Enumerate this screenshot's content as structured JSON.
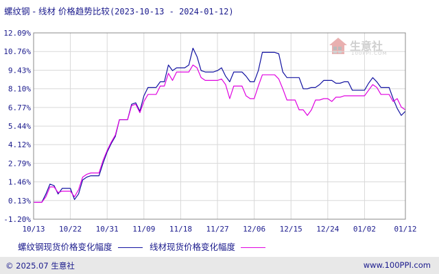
{
  "header": {
    "title_main": "螺纹钢 - 线材 价格趋势比较",
    "title_range": "(2023-10-13 - 2024-01-12)"
  },
  "watermark": {
    "brand": "生意社",
    "url": "100PPI.COM",
    "icon": "house-logo-icon"
  },
  "footer": {
    "left": "© 2025.07 生意社",
    "right": "www.100PPI.com"
  },
  "colors": {
    "series1": "#1010a0",
    "series2": "#e000e0",
    "grid": "#d8d8d8",
    "axis": "#666666",
    "text": "#1a1a8c"
  },
  "chart_data": {
    "type": "line",
    "title": "螺纹钢 - 线材 价格趋势比较",
    "xlabel": "",
    "ylabel": "",
    "ylim": [
      -1.2,
      12.09
    ],
    "y_ticks": [
      "12.09%",
      "10.76%",
      "9.43%",
      "8.10%",
      "6.77%",
      "5.44%",
      "4.12%",
      "2.79%",
      "1.46%",
      "0.13%",
      "-1.20%"
    ],
    "y_tick_values": [
      12.09,
      10.76,
      9.43,
      8.1,
      6.77,
      5.44,
      4.12,
      2.79,
      1.46,
      0.13,
      -1.2
    ],
    "x_ticks": [
      "10/13",
      "10/22",
      "10/31",
      "11/09",
      "11/18",
      "11/27",
      "12/06",
      "12/15",
      "12/24",
      "01/02",
      "01/12"
    ],
    "x_tick_days": [
      0,
      9,
      18,
      27,
      36,
      45,
      54,
      63,
      72,
      81,
      91
    ],
    "x_range_days": [
      0,
      91
    ],
    "grid": true,
    "legend": "bottom",
    "series": [
      {
        "name": "螺纹钢现货价格变化幅度",
        "points": [
          [
            0,
            0
          ],
          [
            2,
            0
          ],
          [
            3,
            0.6
          ],
          [
            4,
            1.3
          ],
          [
            5,
            1.2
          ],
          [
            6,
            0.6
          ],
          [
            7,
            1.0
          ],
          [
            8,
            1.0
          ],
          [
            9,
            1.0
          ],
          [
            10,
            0.2
          ],
          [
            11,
            0.6
          ],
          [
            12,
            1.6
          ],
          [
            13,
            1.8
          ],
          [
            14,
            1.9
          ],
          [
            15,
            1.9
          ],
          [
            16,
            1.9
          ],
          [
            17,
            2.8
          ],
          [
            18,
            3.6
          ],
          [
            19,
            4.2
          ],
          [
            20,
            4.7
          ],
          [
            21,
            5.9
          ],
          [
            22,
            5.9
          ],
          [
            23,
            5.9
          ],
          [
            24,
            7.0
          ],
          [
            25,
            7.1
          ],
          [
            26,
            6.5
          ],
          [
            27,
            7.6
          ],
          [
            28,
            8.2
          ],
          [
            29,
            8.2
          ],
          [
            30,
            8.2
          ],
          [
            31,
            8.6
          ],
          [
            32,
            8.6
          ],
          [
            33,
            9.8
          ],
          [
            34,
            9.4
          ],
          [
            35,
            9.6
          ],
          [
            36,
            9.6
          ],
          [
            37,
            9.6
          ],
          [
            38,
            9.8
          ],
          [
            39,
            11.0
          ],
          [
            40,
            10.4
          ],
          [
            41,
            9.4
          ],
          [
            42,
            9.3
          ],
          [
            43,
            9.3
          ],
          [
            44,
            9.3
          ],
          [
            45,
            9.4
          ],
          [
            46,
            9.6
          ],
          [
            47,
            9.0
          ],
          [
            48,
            8.6
          ],
          [
            49,
            9.3
          ],
          [
            50,
            9.3
          ],
          [
            51,
            9.3
          ],
          [
            52,
            9.0
          ],
          [
            53,
            8.6
          ],
          [
            54,
            8.6
          ],
          [
            55,
            9.4
          ],
          [
            56,
            10.7
          ],
          [
            57,
            10.7
          ],
          [
            58,
            10.7
          ],
          [
            59,
            10.7
          ],
          [
            60,
            10.6
          ],
          [
            61,
            9.3
          ],
          [
            62,
            8.9
          ],
          [
            63,
            8.9
          ],
          [
            64,
            8.9
          ],
          [
            65,
            8.9
          ],
          [
            66,
            8.1
          ],
          [
            67,
            8.1
          ],
          [
            68,
            8.2
          ],
          [
            69,
            8.2
          ],
          [
            70,
            8.4
          ],
          [
            71,
            8.7
          ],
          [
            72,
            8.7
          ],
          [
            73,
            8.7
          ],
          [
            74,
            8.5
          ],
          [
            75,
            8.5
          ],
          [
            76,
            8.6
          ],
          [
            77,
            8.6
          ],
          [
            78,
            8.0
          ],
          [
            79,
            8.0
          ],
          [
            80,
            8.0
          ],
          [
            81,
            8.0
          ],
          [
            82,
            8.5
          ],
          [
            83,
            8.9
          ],
          [
            84,
            8.6
          ],
          [
            85,
            8.2
          ],
          [
            86,
            8.2
          ],
          [
            87,
            8.2
          ],
          [
            88,
            7.4
          ],
          [
            89,
            6.7
          ],
          [
            90,
            6.2
          ],
          [
            91,
            6.5
          ]
        ]
      },
      {
        "name": "线材现货价格变化幅度",
        "points": [
          [
            0,
            0
          ],
          [
            2,
            0
          ],
          [
            3,
            0.4
          ],
          [
            4,
            1.1
          ],
          [
            5,
            1.1
          ],
          [
            6,
            0.7
          ],
          [
            7,
            0.8
          ],
          [
            8,
            0.8
          ],
          [
            9,
            0.8
          ],
          [
            10,
            0.4
          ],
          [
            11,
            0.9
          ],
          [
            12,
            1.8
          ],
          [
            13,
            2.0
          ],
          [
            14,
            2.1
          ],
          [
            15,
            2.1
          ],
          [
            16,
            2.1
          ],
          [
            17,
            3.0
          ],
          [
            18,
            3.7
          ],
          [
            19,
            4.3
          ],
          [
            20,
            4.8
          ],
          [
            21,
            5.9
          ],
          [
            22,
            5.9
          ],
          [
            23,
            5.9
          ],
          [
            24,
            6.9
          ],
          [
            25,
            7.0
          ],
          [
            26,
            6.4
          ],
          [
            27,
            7.2
          ],
          [
            28,
            7.7
          ],
          [
            29,
            7.7
          ],
          [
            30,
            7.7
          ],
          [
            31,
            8.3
          ],
          [
            32,
            8.3
          ],
          [
            33,
            9.2
          ],
          [
            34,
            8.7
          ],
          [
            35,
            9.3
          ],
          [
            36,
            9.3
          ],
          [
            37,
            9.3
          ],
          [
            38,
            9.3
          ],
          [
            39,
            9.8
          ],
          [
            40,
            9.6
          ],
          [
            41,
            8.9
          ],
          [
            42,
            8.7
          ],
          [
            43,
            8.7
          ],
          [
            44,
            8.7
          ],
          [
            45,
            8.7
          ],
          [
            46,
            8.8
          ],
          [
            47,
            8.4
          ],
          [
            48,
            7.4
          ],
          [
            49,
            8.3
          ],
          [
            50,
            8.3
          ],
          [
            51,
            8.3
          ],
          [
            52,
            7.6
          ],
          [
            53,
            7.4
          ],
          [
            54,
            7.4
          ],
          [
            55,
            8.3
          ],
          [
            56,
            9.1
          ],
          [
            57,
            9.1
          ],
          [
            58,
            9.1
          ],
          [
            59,
            9.1
          ],
          [
            60,
            8.8
          ],
          [
            61,
            8.1
          ],
          [
            62,
            7.3
          ],
          [
            63,
            7.3
          ],
          [
            64,
            7.3
          ],
          [
            65,
            6.6
          ],
          [
            66,
            6.6
          ],
          [
            67,
            6.2
          ],
          [
            68,
            6.6
          ],
          [
            69,
            7.3
          ],
          [
            70,
            7.3
          ],
          [
            71,
            7.4
          ],
          [
            72,
            7.4
          ],
          [
            73,
            7.2
          ],
          [
            74,
            7.5
          ],
          [
            75,
            7.5
          ],
          [
            76,
            7.6
          ],
          [
            77,
            7.6
          ],
          [
            78,
            7.6
          ],
          [
            79,
            7.6
          ],
          [
            80,
            7.6
          ],
          [
            81,
            7.6
          ],
          [
            82,
            8.0
          ],
          [
            83,
            8.4
          ],
          [
            84,
            8.2
          ],
          [
            85,
            7.7
          ],
          [
            86,
            7.7
          ],
          [
            87,
            7.7
          ],
          [
            88,
            7.2
          ],
          [
            89,
            7.4
          ],
          [
            90,
            6.8
          ],
          [
            91,
            6.6
          ]
        ]
      }
    ]
  }
}
